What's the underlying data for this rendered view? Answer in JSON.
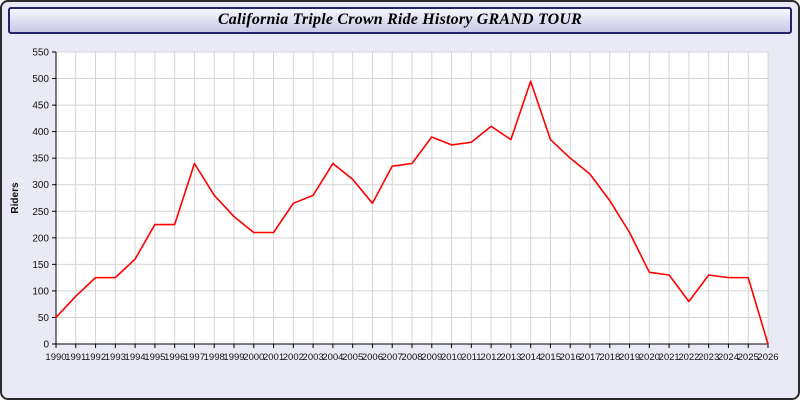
{
  "header": {
    "title": "California Triple Crown Ride History GRAND TOUR"
  },
  "colors": {
    "window_bg": "#eaeaf6",
    "title_border": "#23236e",
    "outer_border": "#2b2b2b"
  },
  "chart_data": {
    "type": "line",
    "title": "California Triple Crown Ride History GRAND TOUR",
    "xlabel": "",
    "ylabel": "Riders",
    "ylim": [
      0,
      550
    ],
    "ytick_step": 50,
    "grid": true,
    "legend": "none",
    "categories": [
      "1990",
      "1991",
      "1992",
      "1993",
      "1994",
      "1995",
      "1996",
      "1997",
      "1998",
      "1999",
      "2000",
      "2001",
      "2002",
      "2003",
      "2004",
      "2005",
      "2006",
      "2007",
      "2008",
      "2009",
      "2010",
      "2011",
      "2012",
      "2013",
      "2014",
      "2015",
      "2016",
      "2017",
      "2018",
      "2019",
      "2020",
      "2021",
      "2022",
      "2023",
      "2024",
      "2025",
      "2026"
    ],
    "values": [
      50,
      90,
      125,
      125,
      160,
      225,
      225,
      340,
      280,
      240,
      210,
      210,
      265,
      280,
      340,
      310,
      265,
      335,
      340,
      390,
      375,
      380,
      410,
      385,
      495,
      385,
      350,
      320,
      270,
      210,
      135,
      130,
      80,
      130,
      125,
      125,
      0
    ],
    "colors": {
      "line": "#ff0000",
      "grid": "#d4d4d4",
      "plot_bg": "#ffffff",
      "axis": "#000000",
      "tick_text": "#111111"
    }
  }
}
